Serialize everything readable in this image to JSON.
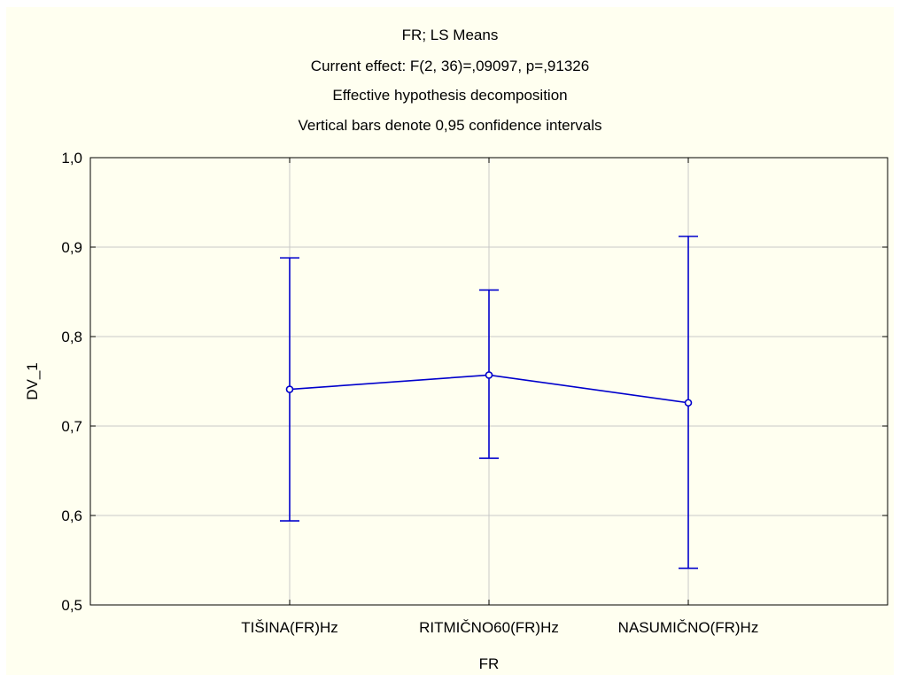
{
  "chart_data": {
    "type": "line",
    "title_lines": [
      "FR; LS Means",
      "Current effect: F(2, 36)=,09097, p=,91326",
      "Effective hypothesis decomposition",
      "Vertical bars denote 0,95 confidence intervals"
    ],
    "xlabel": "FR",
    "ylabel": "DV_1",
    "categories": [
      "TIŠINA(FR)Hz",
      "RITMIČNO60(FR)Hz",
      "NASUMIČNO(FR)Hz"
    ],
    "y_ticks": [
      "0,5",
      "0,6",
      "0,7",
      "0,8",
      "0,9",
      "1,0"
    ],
    "ylim": [
      0.5,
      1.0
    ],
    "grid": true,
    "series": [
      {
        "values": [
          0.741,
          0.757,
          0.726
        ],
        "ci_lower": [
          0.594,
          0.664,
          0.541
        ],
        "ci_upper": [
          0.888,
          0.852,
          0.912
        ]
      }
    ],
    "colors": {
      "series": "#0000cc",
      "grid": "#c8c8c8",
      "background": "#fffff0"
    }
  }
}
